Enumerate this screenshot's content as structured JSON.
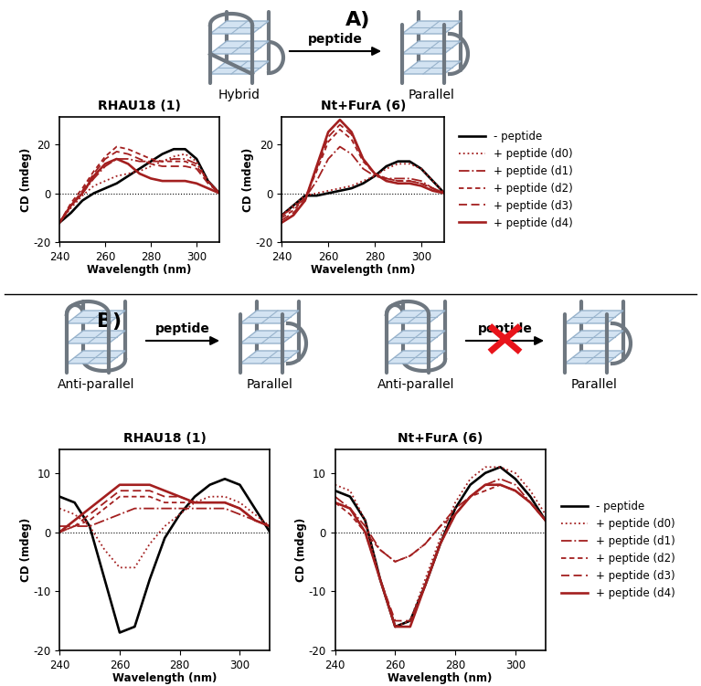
{
  "chart_data": [
    {
      "type": "line",
      "title": "RHAU18 (1)",
      "x_label": "Wavelength (nm)",
      "y_label": "CD (mdeg)",
      "x": [
        240,
        245,
        250,
        255,
        260,
        265,
        270,
        275,
        280,
        285,
        290,
        295,
        300,
        305,
        310
      ],
      "xlim": [
        240,
        310
      ],
      "xticks": [
        240,
        260,
        280,
        300
      ],
      "ylim": [
        -20,
        31
      ],
      "yticks": [
        -20,
        0,
        20
      ],
      "series": [
        {
          "name": "- peptide",
          "color": "#000000",
          "line_style": "solid",
          "values": [
            -12,
            -8,
            -3,
            0,
            2,
            4,
            7,
            10,
            13,
            16,
            18,
            18,
            14,
            5,
            0
          ]
        },
        {
          "name": "+ peptide (d0)",
          "color": "#a31f1f",
          "line_style": "dotted",
          "values": [
            -12,
            -6,
            -1,
            3,
            5,
            7,
            8,
            9,
            11,
            13,
            15,
            16,
            13,
            5,
            0
          ]
        },
        {
          "name": "+ peptide (d1)",
          "color": "#a31f1f",
          "line_style": "dashdot",
          "values": [
            -12,
            -5,
            0,
            6,
            11,
            14,
            14,
            13,
            13,
            13,
            14,
            14,
            12,
            5,
            0
          ]
        },
        {
          "name": "+ peptide (d2)",
          "color": "#a31f1f",
          "line_style": "dashed_fine",
          "values": [
            -12,
            -4,
            2,
            9,
            15,
            19,
            18,
            16,
            14,
            13,
            13,
            13,
            11,
            5,
            0
          ]
        },
        {
          "name": "+ peptide (d3)",
          "color": "#a31f1f",
          "line_style": "dashed",
          "values": [
            -12,
            -5,
            1,
            8,
            14,
            17,
            16,
            14,
            12,
            11,
            11,
            11,
            10,
            4,
            0
          ]
        },
        {
          "name": "+ peptide (d4)",
          "color": "#a31f1f",
          "line_style": "solid",
          "values": [
            -12,
            -5,
            0,
            7,
            12,
            14,
            12,
            8,
            6,
            5,
            5,
            5,
            4,
            2,
            0
          ]
        }
      ]
    },
    {
      "type": "line",
      "title": "Nt+FurA (6)",
      "x_label": "Wavelength (nm)",
      "y_label": "CD (mdeg)",
      "x": [
        240,
        245,
        250,
        255,
        260,
        265,
        270,
        275,
        280,
        285,
        290,
        295,
        300,
        305,
        310
      ],
      "xlim": [
        240,
        310
      ],
      "xticks": [
        240,
        260,
        280,
        300
      ],
      "ylim": [
        -20,
        31
      ],
      "yticks": [
        -20,
        0,
        20
      ],
      "legend": "center left",
      "series": [
        {
          "name": "- peptide",
          "color": "#000000",
          "line_style": "solid",
          "values": [
            -9,
            -5,
            -1,
            -1,
            0,
            1,
            2,
            4,
            7,
            11,
            13,
            13,
            10,
            5,
            0
          ]
        },
        {
          "name": "+ peptide (d0)",
          "color": "#a31f1f",
          "line_style": "dotted",
          "values": [
            -9,
            -5,
            -1,
            0,
            1,
            2,
            3,
            5,
            7,
            10,
            12,
            12,
            10,
            5,
            0
          ]
        },
        {
          "name": "+ peptide (d1)",
          "color": "#a31f1f",
          "line_style": "dashdot",
          "values": [
            -9,
            -6,
            -2,
            5,
            14,
            19,
            16,
            10,
            7,
            6,
            6,
            6,
            5,
            2,
            0
          ]
        },
        {
          "name": "+ peptide (d2)",
          "color": "#a31f1f",
          "line_style": "dashed_fine",
          "values": [
            -10,
            -7,
            -2,
            9,
            21,
            26,
            22,
            13,
            8,
            6,
            5,
            5,
            4,
            2,
            0
          ]
        },
        {
          "name": "+ peptide (d3)",
          "color": "#a31f1f",
          "line_style": "dashed",
          "values": [
            -11,
            -8,
            -3,
            10,
            23,
            28,
            24,
            14,
            8,
            6,
            5,
            5,
            4,
            2,
            0
          ]
        },
        {
          "name": "+ peptide (d4)",
          "color": "#a31f1f",
          "line_style": "solid",
          "values": [
            -12,
            -9,
            -3,
            11,
            25,
            30,
            25,
            14,
            8,
            5,
            4,
            4,
            3,
            1,
            0
          ]
        }
      ]
    },
    {
      "type": "line",
      "title": "RHAU18 (1)",
      "x_label": "Wavelength (nm)",
      "y_label": "CD (mdeg)",
      "x": [
        240,
        245,
        250,
        255,
        260,
        265,
        270,
        275,
        280,
        285,
        290,
        295,
        300,
        305,
        310
      ],
      "xlim": [
        240,
        310
      ],
      "xticks": [
        240,
        260,
        280,
        300
      ],
      "ylim": [
        -20,
        14
      ],
      "yticks": [
        -20,
        -10,
        0,
        10
      ],
      "series": [
        {
          "name": "- peptide",
          "color": "#000000",
          "line_style": "solid",
          "values": [
            6,
            5,
            1,
            -8,
            -17,
            -16,
            -8,
            -1,
            3,
            6,
            8,
            9,
            8,
            4,
            0
          ]
        },
        {
          "name": "+ peptide (d0)",
          "color": "#a31f1f",
          "line_style": "dotted",
          "values": [
            4,
            3,
            1,
            -3,
            -6,
            -6,
            -2,
            1,
            3,
            5,
            6,
            6,
            5,
            3,
            1
          ]
        },
        {
          "name": "+ peptide (d1)",
          "color": "#a31f1f",
          "line_style": "dashdot",
          "values": [
            1,
            1,
            1,
            2,
            3,
            4,
            4,
            4,
            4,
            4,
            4,
            4,
            3,
            2,
            1
          ]
        },
        {
          "name": "+ peptide (d2)",
          "color": "#a31f1f",
          "line_style": "dashed_fine",
          "values": [
            0,
            1,
            2,
            4,
            6,
            6,
            6,
            5,
            5,
            5,
            5,
            5,
            4,
            2,
            1
          ]
        },
        {
          "name": "+ peptide (d3)",
          "color": "#a31f1f",
          "line_style": "dashed",
          "values": [
            0,
            1,
            3,
            5,
            7,
            7,
            7,
            6,
            6,
            5,
            5,
            5,
            4,
            2,
            1
          ]
        },
        {
          "name": "+ peptide (d4)",
          "color": "#a31f1f",
          "line_style": "solid",
          "values": [
            0,
            2,
            4,
            6,
            8,
            8,
            8,
            7,
            6,
            5,
            5,
            5,
            4,
            2,
            1
          ]
        }
      ]
    },
    {
      "type": "line",
      "title": "Nt+FurA (6)",
      "x_label": "Wavelength (nm)",
      "y_label": "CD (mdeg)",
      "x": [
        240,
        245,
        250,
        255,
        260,
        265,
        270,
        275,
        280,
        285,
        290,
        295,
        300,
        305,
        310
      ],
      "xlim": [
        240,
        310
      ],
      "xticks": [
        240,
        260,
        280,
        300
      ],
      "ylim": [
        -20,
        14
      ],
      "yticks": [
        -20,
        -10,
        0,
        10
      ],
      "legend": "center left",
      "series": [
        {
          "name": "- peptide",
          "color": "#000000",
          "line_style": "solid",
          "values": [
            7,
            6,
            2,
            -8,
            -16,
            -15,
            -9,
            -2,
            4,
            8,
            10,
            11,
            9,
            6,
            2
          ]
        },
        {
          "name": "+ peptide (d0)",
          "color": "#a31f1f",
          "line_style": "dotted",
          "values": [
            8,
            7,
            2,
            -8,
            -16,
            -15,
            -8,
            -1,
            5,
            9,
            11,
            11,
            10,
            7,
            3
          ]
        },
        {
          "name": "+ peptide (d1)",
          "color": "#a31f1f",
          "line_style": "dashdot",
          "values": [
            6,
            4,
            1,
            -3,
            -5,
            -4,
            -2,
            1,
            4,
            6,
            8,
            9,
            8,
            5,
            2
          ]
        },
        {
          "name": "+ peptide (d2)",
          "color": "#a31f1f",
          "line_style": "dashed_fine",
          "values": [
            5,
            3,
            0,
            -3,
            -5,
            -4,
            -2,
            1,
            3,
            6,
            7,
            8,
            7,
            5,
            2
          ]
        },
        {
          "name": "+ peptide (d3)",
          "color": "#a31f1f",
          "line_style": "dashed",
          "values": [
            5,
            4,
            0,
            -8,
            -15,
            -15,
            -9,
            -2,
            3,
            6,
            8,
            8,
            7,
            5,
            2
          ]
        },
        {
          "name": "+ peptide (d4)",
          "color": "#a31f1f",
          "line_style": "solid",
          "values": [
            5,
            4,
            0,
            -8,
            -16,
            -16,
            -9,
            -2,
            3,
            6,
            8,
            8,
            7,
            5,
            2
          ]
        }
      ]
    }
  ],
  "diagrams": [
    {
      "label": "A)",
      "items": [
        {
          "from": "Hybrid",
          "to": "Parallel",
          "arrow": "peptide",
          "blocked": false
        }
      ]
    },
    {
      "label": "B)",
      "items": [
        {
          "from": "Anti-parallel",
          "to": "Parallel",
          "arrow": "peptide",
          "blocked": false
        },
        {
          "from": "Anti-parallel",
          "to": "Parallel",
          "arrow": "peptide",
          "blocked": true
        }
      ]
    }
  ]
}
